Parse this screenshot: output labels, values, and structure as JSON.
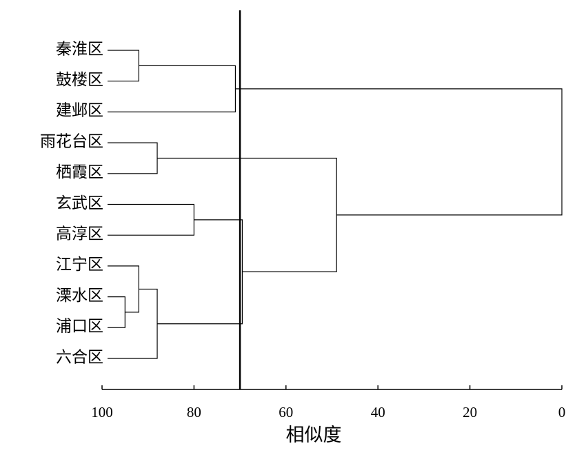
{
  "chart_data": {
    "type": "dendrogram",
    "leaves": [
      "秦淮区",
      "鼓楼区",
      "建邺区",
      "雨花台区",
      "栖霞区",
      "玄武区",
      "高淳区",
      "江宁区",
      "溧水区",
      "浦口区",
      "六合区"
    ],
    "merges": [
      {
        "left": 8,
        "right": 9,
        "height": 95
      },
      {
        "left": 0,
        "right": 1,
        "height": 92
      },
      {
        "left": 7,
        "right": 11,
        "height": 92
      },
      {
        "left": 3,
        "right": 4,
        "height": 88
      },
      {
        "left": 13,
        "right": 10,
        "height": 88
      },
      {
        "left": 5,
        "right": 6,
        "height": 80
      },
      {
        "left": 12,
        "right": 2,
        "height": 71
      },
      {
        "left": 16,
        "right": 15,
        "height": 69.5
      },
      {
        "left": 14,
        "right": 18,
        "height": 49
      },
      {
        "left": 17,
        "right": 19,
        "height": 0
      }
    ],
    "cut": 70,
    "xlabel": "相似度",
    "xlim": [
      100,
      0
    ],
    "xticks": [
      100,
      80,
      60,
      40,
      20,
      0
    ],
    "color": "#000000"
  }
}
